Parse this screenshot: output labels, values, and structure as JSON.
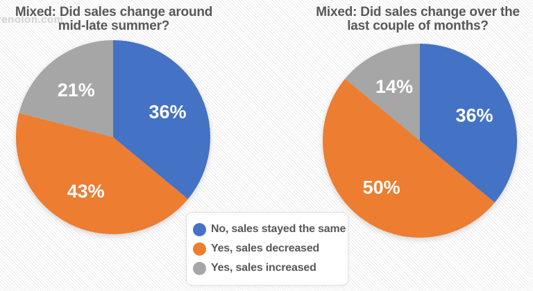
{
  "watermark": "renolon.com",
  "colors": {
    "blue": "#4472C4",
    "orange": "#ED7D31",
    "gray": "#A6A6A6",
    "title_text": "#57585A",
    "slice_label_text": "#FFFFFF",
    "legend_background": "#FFFFFF",
    "background_stripe": "#EFEFEF"
  },
  "legend": {
    "items": [
      {
        "label": "No, sales stayed the same",
        "color": "#4472C4"
      },
      {
        "label": "Yes, sales decreased",
        "color": "#ED7D31"
      },
      {
        "label": "Yes, sales increased",
        "color": "#A6A6A6"
      }
    ]
  },
  "chart_data": [
    {
      "type": "pie",
      "title": "Mixed: Did sales change around mid-late summer?",
      "title_lines": [
        "Mixed: Did sales change around",
        "mid-late summer?"
      ],
      "categories": [
        "No, sales stayed the same",
        "Yes, sales decreased",
        "Yes, sales increased"
      ],
      "values": [
        36,
        43,
        21
      ],
      "labels": [
        "36%",
        "43%",
        "21%"
      ],
      "colors": [
        "#4472C4",
        "#ED7D31",
        "#A6A6A6"
      ],
      "start_angle": "top",
      "direction": "clockwise",
      "legend_position": "bottom-center-shared"
    },
    {
      "type": "pie",
      "title": "Mixed: Did sales change over the last couple of months?",
      "title_lines": [
        "Mixed: Did sales change over the",
        "last couple of months?"
      ],
      "categories": [
        "No, sales stayed the same",
        "Yes, sales decreased",
        "Yes, sales increased"
      ],
      "values": [
        36,
        50,
        14
      ],
      "labels": [
        "36%",
        "50%",
        "14%"
      ],
      "colors": [
        "#4472C4",
        "#ED7D31",
        "#A6A6A6"
      ],
      "start_angle": "top",
      "direction": "clockwise",
      "legend_position": "bottom-center-shared"
    }
  ]
}
